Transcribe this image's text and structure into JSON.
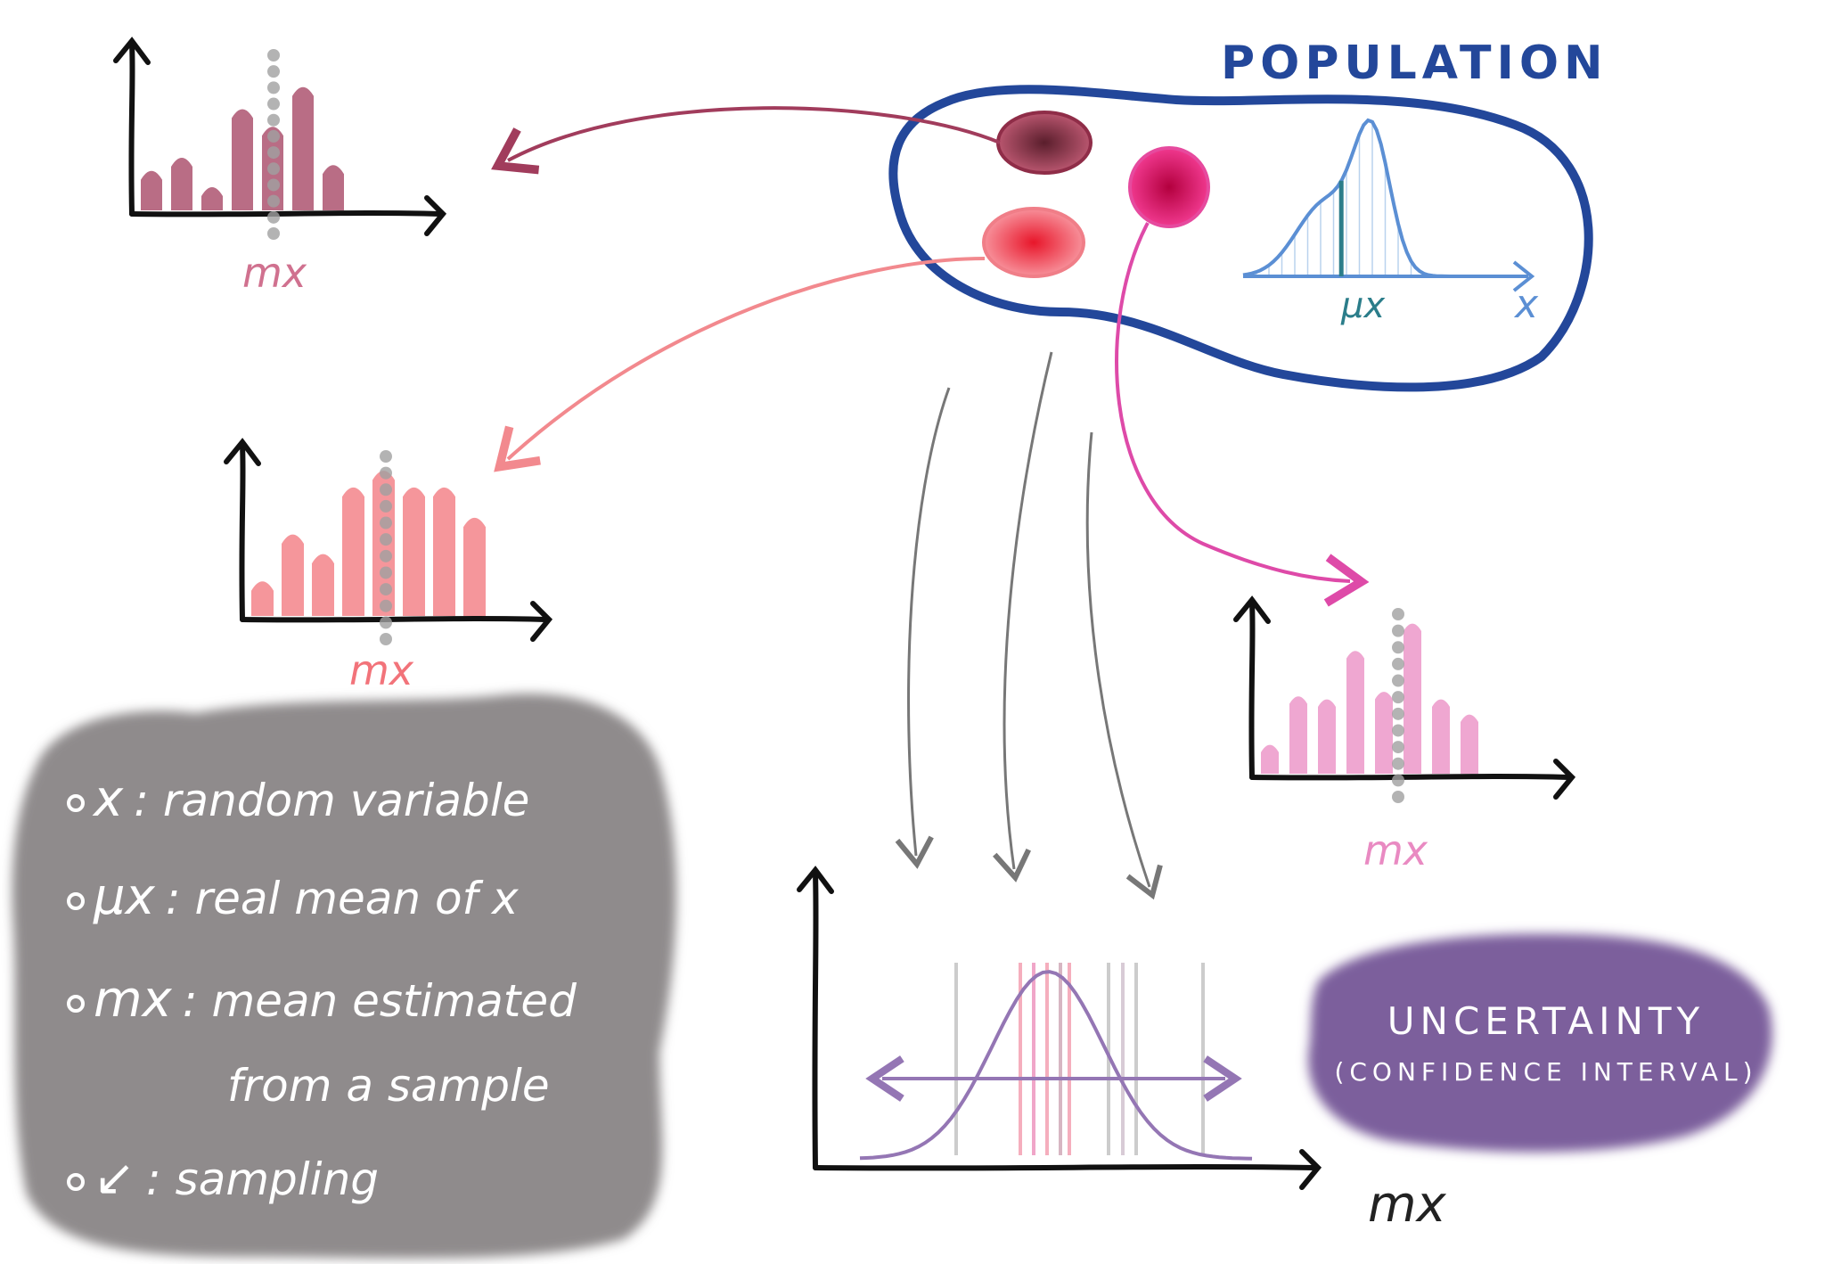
{
  "population": {
    "title": "POPULATION",
    "curve_label": "μx",
    "axis_label": "x"
  },
  "samples": [
    {
      "name": "sample-dark",
      "color": "#a13c5c",
      "label": "mx",
      "bars": [
        0.28,
        0.37,
        0.17,
        0.7,
        0.58,
        0.85,
        0.32
      ]
    },
    {
      "name": "sample-red",
      "color": "#f2737a",
      "label": "mx",
      "bars": [
        0.24,
        0.55,
        0.42,
        0.86,
        0.97,
        0.86,
        0.86,
        0.66
      ]
    },
    {
      "name": "sample-pink",
      "color": "#e98ac2",
      "label": "mx",
      "bars": [
        0.2,
        0.52,
        0.5,
        0.82,
        0.55,
        1.0,
        0.5,
        0.4
      ]
    }
  ],
  "estimate": {
    "axis_label": "mx"
  },
  "legend": {
    "items": [
      {
        "symbol": "x",
        "text": ": random variable"
      },
      {
        "symbol": "μx",
        "text": ": real mean of x"
      },
      {
        "symbol": "mx",
        "text": ": mean estimated"
      },
      {
        "symbol": "",
        "text": "from a sample"
      },
      {
        "symbol": "↙",
        "text": ": sampling"
      }
    ],
    "colors": {
      "bg": "#8f8b8c",
      "text": "#ffffff"
    }
  },
  "uncertainty": {
    "title": "UNCERTAINTY",
    "subtitle": "(CONFIDENCE INTERVAL)",
    "colors": {
      "bg": "#7b5f9c",
      "text": "#ffffff"
    }
  },
  "colors": {
    "population_outline": "#23479a",
    "population_curve": "#5b8fd4",
    "population_mean": "#2b7d8a",
    "arrow_gray": "#777777",
    "estimate_curve": "#9476b4"
  }
}
